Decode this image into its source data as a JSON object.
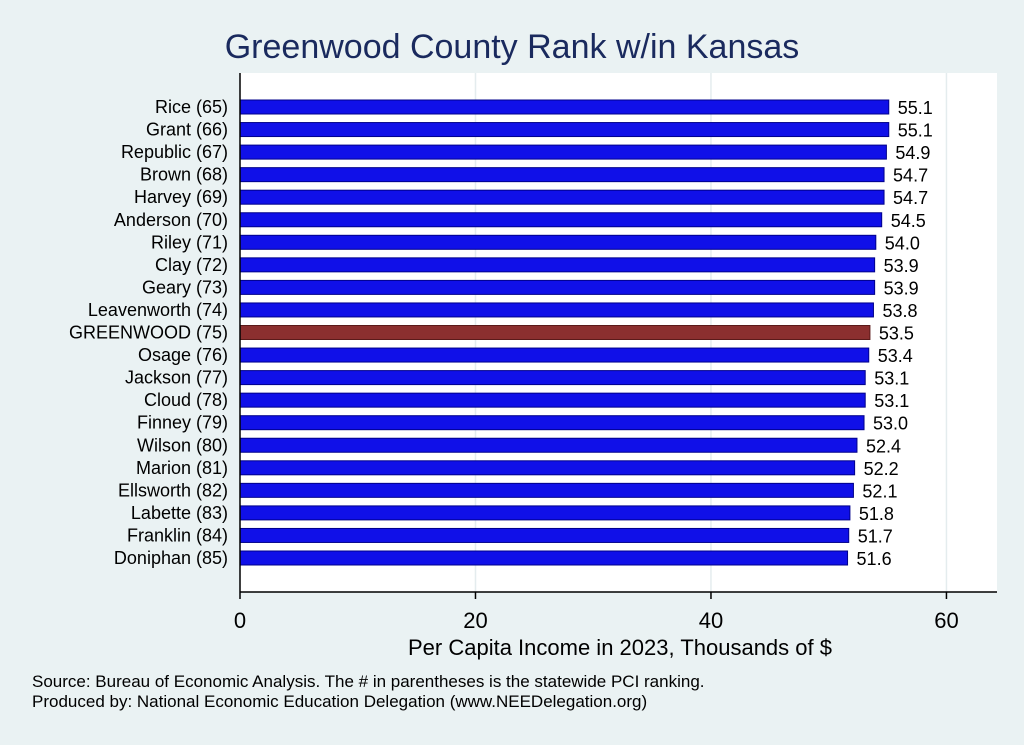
{
  "chart_data": {
    "type": "bar",
    "orientation": "horizontal",
    "title": "Greenwood County Rank w/in Kansas",
    "xlabel": "Per Capita Income in 2023, Thousands of $",
    "xlim": [
      0,
      62
    ],
    "xticks": [
      0,
      20,
      40,
      60
    ],
    "grid": true,
    "categories": [
      "Rice (65)",
      "Grant (66)",
      "Republic (67)",
      "Brown (68)",
      "Harvey (69)",
      "Anderson (70)",
      "Riley (71)",
      "Clay (72)",
      "Geary (73)",
      "Leavenworth (74)",
      "GREENWOOD (75)",
      "Osage (76)",
      "Jackson (77)",
      "Cloud (78)",
      "Finney (79)",
      "Wilson (80)",
      "Marion (81)",
      "Ellsworth (82)",
      "Labette (83)",
      "Franklin (84)",
      "Doniphan (85)"
    ],
    "values": [
      55.1,
      55.1,
      54.9,
      54.7,
      54.7,
      54.5,
      54.0,
      53.9,
      53.9,
      53.8,
      53.5,
      53.4,
      53.1,
      53.1,
      53.0,
      52.4,
      52.2,
      52.1,
      51.8,
      51.7,
      51.6
    ],
    "value_labels": [
      "55.1",
      "55.1",
      "54.9",
      "54.7",
      "54.7",
      "54.5",
      "54.0",
      "53.9",
      "53.9",
      "53.8",
      "53.5",
      "53.4",
      "53.1",
      "53.1",
      "53.0",
      "52.4",
      "52.2",
      "52.1",
      "51.8",
      "51.7",
      "51.6"
    ],
    "highlight_category": "GREENWOOD (75)",
    "colors": {
      "bar": "#1010e8",
      "highlight": "#8b2f2f",
      "bar_edge": "#00008b",
      "grid": "#e4ecee"
    }
  },
  "notes": {
    "source": "Source: Bureau of Economic Analysis. The # in parentheses is the statewide PCI ranking.",
    "producer": "Produced by: National Economic Education Delegation (www.NEEDelegation.org)"
  }
}
